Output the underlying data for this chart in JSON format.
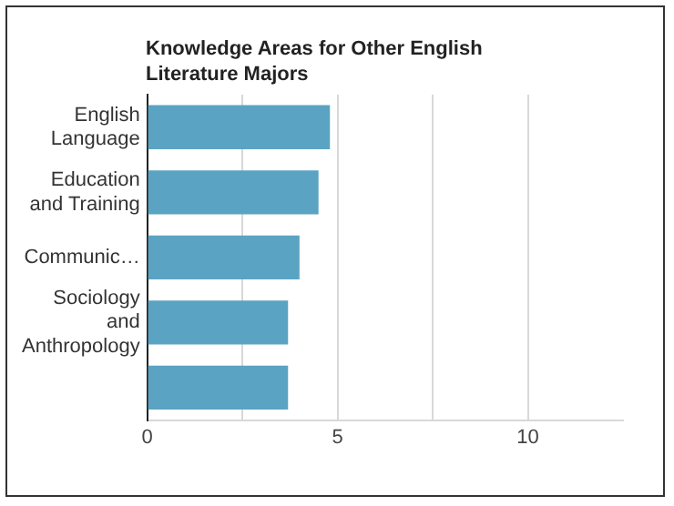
{
  "chart_data": {
    "type": "bar",
    "orientation": "horizontal",
    "title": "Knowledge Areas for Other English Literature Majors",
    "categories": [
      "English Language",
      "Education and Training",
      "Communic…",
      "Sociology and Anthropology",
      null
    ],
    "values": [
      4.8,
      4.5,
      4.0,
      3.7,
      3.7
    ],
    "color": "#5ba3c2",
    "xlim": [
      0,
      12.5
    ],
    "xticks": [
      0,
      {
        "value": 2.5,
        "label": null
      },
      5,
      {
        "value": 7.5,
        "label": null
      },
      10
    ],
    "grid": "x",
    "legend": false
  }
}
